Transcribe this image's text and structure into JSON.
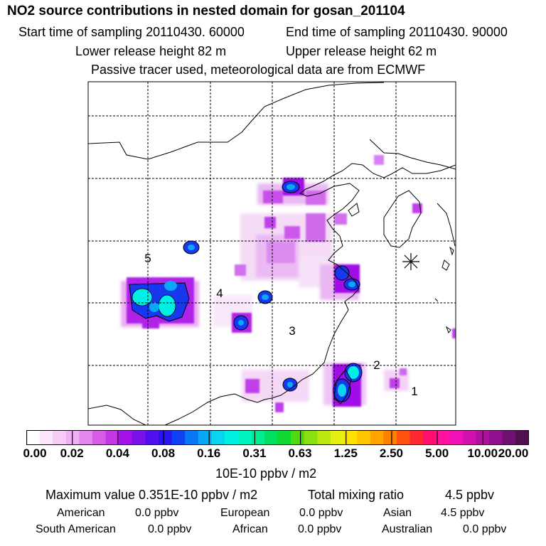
{
  "header": {
    "title": "NO2 source contributions in nested domain for gosan_201104",
    "start_sampling": "Start time of sampling 20110430. 60000",
    "end_sampling": "End time of sampling 20110430. 90000",
    "lower_release": "Lower release height   82 m",
    "upper_release": "Upper release height   62 m",
    "note": "Passive tracer used, meteorological data are from ECMWF"
  },
  "map": {
    "region_labels": [
      "1",
      "2",
      "3",
      "4",
      "5"
    ],
    "receptor_marker": "receptor-marker"
  },
  "colorbar": {
    "labels": [
      "0.00",
      "0.02",
      "0.04",
      "0.08",
      "0.16",
      "0.31",
      "0.63",
      "1.25",
      "2.50",
      "5.00",
      "10.00",
      "20.00"
    ],
    "colors": [
      "#ffffff",
      "#fbe6fb",
      "#f6ccf7",
      "#f0b0f4",
      "#e486ef",
      "#d65ce8",
      "#c436e6",
      "#a610e8",
      "#7a10ea",
      "#5010ee",
      "#2a14f0",
      "#1040f4",
      "#0a78f4",
      "#0aa8f4",
      "#0ad4f0",
      "#00f0e6",
      "#00f4c0",
      "#00ec90",
      "#00e060",
      "#10d830",
      "#50d810",
      "#8ae010",
      "#bce810",
      "#e4f010",
      "#ffe000",
      "#ffc400",
      "#ffa400",
      "#ff8000",
      "#ff5010",
      "#ff2830",
      "#ff1070",
      "#ff10a0",
      "#f010b8",
      "#d010b0",
      "#b010a0",
      "#901090",
      "#701070",
      "#501050"
    ],
    "units": "10E-10 ppbv / m2"
  },
  "summary": {
    "max_value": "Maximum value  0.351E-10 ppbv / m2",
    "total_label": "Total mixing ratio",
    "total_value": "4.5 ppbv",
    "sources": [
      {
        "name": "American",
        "value": "0.0 ppbv"
      },
      {
        "name": "European",
        "value": "0.0 ppbv"
      },
      {
        "name": "Asian",
        "value": "4.5 ppbv"
      },
      {
        "name": "South American",
        "value": "0.0 ppbv"
      },
      {
        "name": "African",
        "value": "0.0 ppbv"
      },
      {
        "name": "Australian",
        "value": "0.0 ppbv"
      }
    ]
  }
}
